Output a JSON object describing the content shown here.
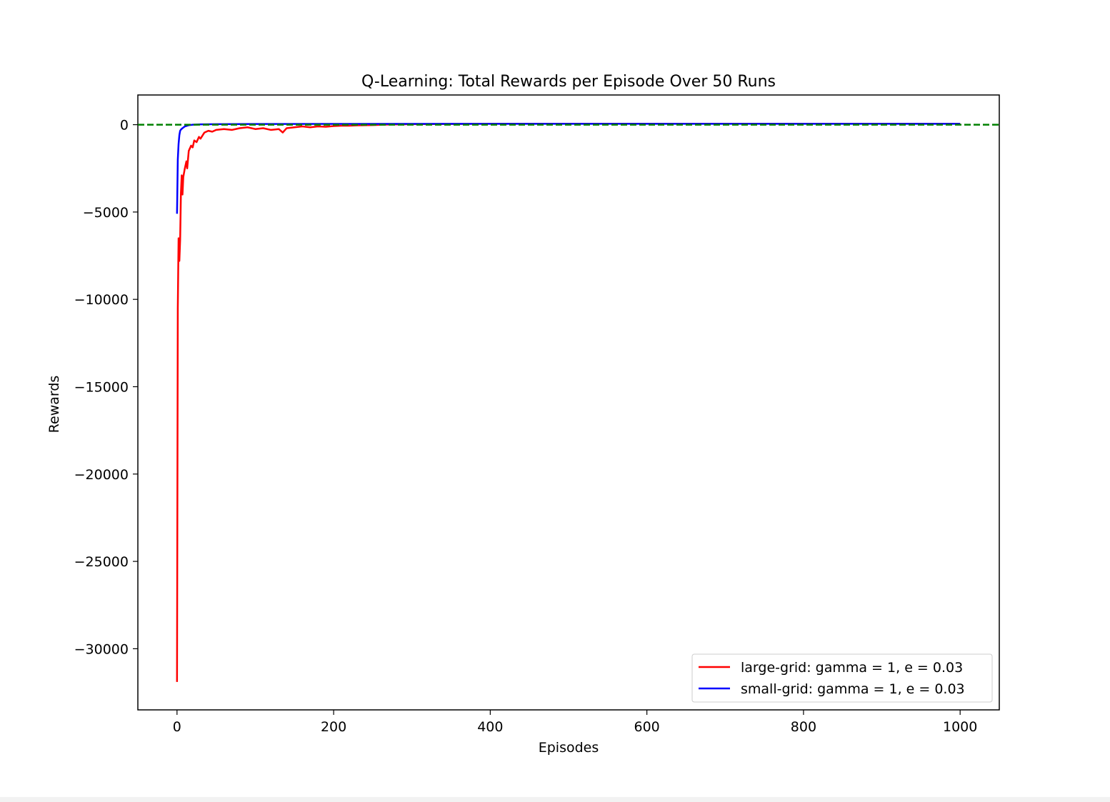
{
  "chart_data": {
    "type": "line",
    "title": "Q-Learning: Total Rewards per Episode Over 50 Runs",
    "xlabel": "Episodes",
    "ylabel": "Rewards",
    "xlim": [
      -50,
      1050
    ],
    "ylim": [
      -33500,
      1700
    ],
    "xticks": [
      0,
      200,
      400,
      600,
      800,
      1000
    ],
    "xtick_labels": [
      "0",
      "200",
      "400",
      "600",
      "800",
      "1000"
    ],
    "yticks": [
      0,
      -5000,
      -10000,
      -15000,
      -20000,
      -25000,
      -30000
    ],
    "ytick_labels": [
      "0",
      "−5000",
      "−10000",
      "−15000",
      "−20000",
      "−25000",
      "−30000"
    ],
    "grid": false,
    "legend_position": "lower right",
    "reference_line": {
      "y": 0,
      "color": "#008000",
      "style": "dashed"
    },
    "series": [
      {
        "name": "large-grid: gamma = 1, e = 0.03",
        "color": "#ff0000",
        "points": [
          [
            0,
            -31900
          ],
          [
            1,
            -10500
          ],
          [
            2,
            -6500
          ],
          [
            3,
            -7800
          ],
          [
            4,
            -6600
          ],
          [
            5,
            -3900
          ],
          [
            6,
            -2900
          ],
          [
            7,
            -4000
          ],
          [
            8,
            -3000
          ],
          [
            10,
            -2500
          ],
          [
            12,
            -2100
          ],
          [
            13,
            -2500
          ],
          [
            15,
            -1500
          ],
          [
            18,
            -1200
          ],
          [
            20,
            -1300
          ],
          [
            22,
            -900
          ],
          [
            25,
            -1000
          ],
          [
            28,
            -700
          ],
          [
            30,
            -800
          ],
          [
            35,
            -450
          ],
          [
            40,
            -350
          ],
          [
            45,
            -400
          ],
          [
            50,
            -300
          ],
          [
            60,
            -250
          ],
          [
            70,
            -300
          ],
          [
            80,
            -200
          ],
          [
            90,
            -150
          ],
          [
            100,
            -250
          ],
          [
            110,
            -200
          ],
          [
            120,
            -300
          ],
          [
            130,
            -250
          ],
          [
            135,
            -450
          ],
          [
            140,
            -200
          ],
          [
            150,
            -150
          ],
          [
            160,
            -100
          ],
          [
            170,
            -150
          ],
          [
            180,
            -100
          ],
          [
            190,
            -120
          ],
          [
            200,
            -80
          ],
          [
            210,
            -60
          ],
          [
            220,
            -60
          ],
          [
            230,
            -40
          ],
          [
            250,
            -20
          ],
          [
            270,
            10
          ],
          [
            300,
            30
          ],
          [
            350,
            40
          ],
          [
            400,
            50
          ],
          [
            500,
            55
          ],
          [
            600,
            55
          ],
          [
            700,
            55
          ],
          [
            800,
            55
          ],
          [
            900,
            55
          ],
          [
            1000,
            55
          ]
        ]
      },
      {
        "name": "small-grid: gamma = 1, e = 0.03",
        "color": "#0000ff",
        "points": [
          [
            0,
            -5100
          ],
          [
            1,
            -2000
          ],
          [
            2,
            -1100
          ],
          [
            3,
            -600
          ],
          [
            4,
            -350
          ],
          [
            5,
            -280
          ],
          [
            7,
            -200
          ],
          [
            10,
            -100
          ],
          [
            15,
            -30
          ],
          [
            20,
            0
          ],
          [
            30,
            20
          ],
          [
            50,
            30
          ],
          [
            100,
            40
          ],
          [
            200,
            45
          ],
          [
            400,
            48
          ],
          [
            600,
            50
          ],
          [
            800,
            50
          ],
          [
            1000,
            50
          ]
        ]
      }
    ]
  }
}
